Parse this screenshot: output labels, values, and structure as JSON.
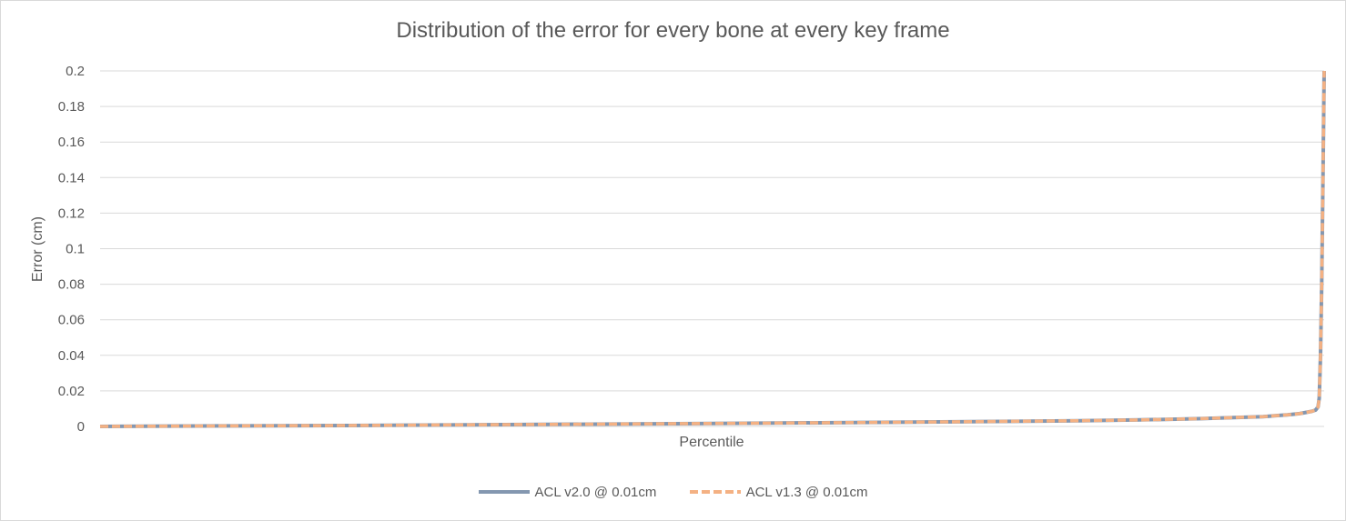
{
  "chart_data": {
    "type": "line",
    "title": "Distribution of the error for every bone at every key frame",
    "xlabel": "Percentile",
    "ylabel": "Error (cm)",
    "ylim": [
      0,
      0.2
    ],
    "xlim": [
      0,
      100
    ],
    "yticks": [
      "0.2",
      "0.18",
      "0.16",
      "0.14",
      "0.12",
      "0.1",
      "0.08",
      "0.06",
      "0.04",
      "0.02",
      "0"
    ],
    "grid": true,
    "legend_position": "bottom",
    "x": [
      0,
      10,
      20,
      30,
      40,
      50,
      60,
      70,
      80,
      85,
      90,
      95,
      97,
      98,
      99,
      99.3,
      99.5,
      99.6,
      99.7,
      99.8,
      99.9,
      100
    ],
    "series": [
      {
        "name": "ACL v2.0 @ 0.01cm",
        "color": "#8497b0",
        "style": "solid",
        "values": [
          0,
          0.0003,
          0.0005,
          0.0009,
          0.0013,
          0.0017,
          0.0021,
          0.0026,
          0.0032,
          0.0037,
          0.0044,
          0.0055,
          0.0065,
          0.0072,
          0.0085,
          0.0092,
          0.011,
          0.016,
          0.04,
          0.08,
          0.14,
          0.2
        ]
      },
      {
        "name": "ACL v1.3 @ 0.01cm",
        "color": "#f4b183",
        "style": "dashed",
        "values": [
          0,
          0.0003,
          0.0005,
          0.0009,
          0.0013,
          0.0017,
          0.0021,
          0.0026,
          0.0032,
          0.0037,
          0.0044,
          0.0055,
          0.0065,
          0.0072,
          0.0085,
          0.0092,
          0.011,
          0.016,
          0.04,
          0.08,
          0.14,
          0.2
        ]
      }
    ]
  }
}
